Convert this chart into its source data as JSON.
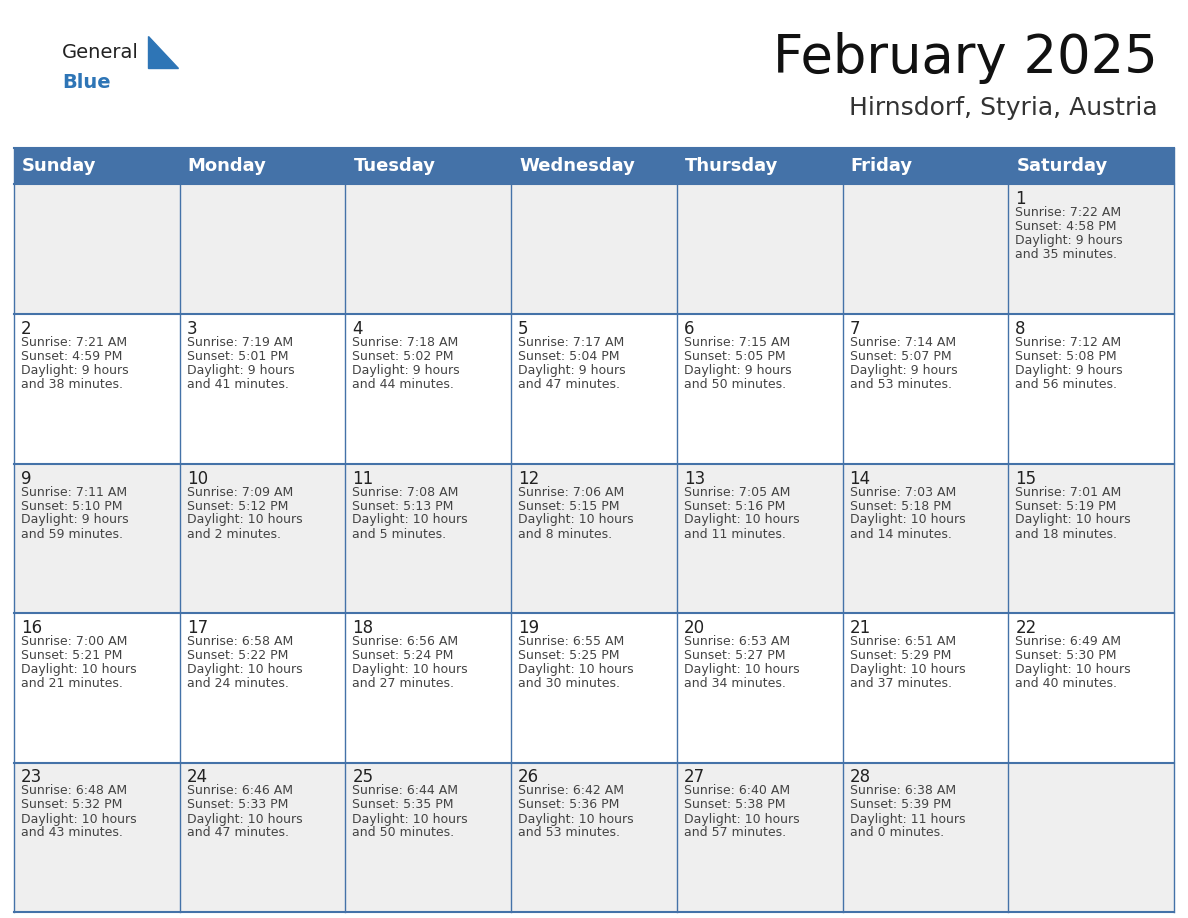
{
  "title": "February 2025",
  "subtitle": "Hirnsdorf, Styria, Austria",
  "header_color": "#4472A8",
  "header_text_color": "#FFFFFF",
  "row_bg_gray": "#EFEFEF",
  "row_bg_white": "#FFFFFF",
  "grid_line_color": "#4472A8",
  "day_headers": [
    "Sunday",
    "Monday",
    "Tuesday",
    "Wednesday",
    "Thursday",
    "Friday",
    "Saturday"
  ],
  "title_fontsize": 38,
  "subtitle_fontsize": 18,
  "header_fontsize": 13,
  "cell_day_fontsize": 12,
  "cell_text_fontsize": 9,
  "days": [
    {
      "day": 1,
      "col": 6,
      "row": 0,
      "sunrise": "7:22 AM",
      "sunset": "4:58 PM",
      "daylight_h": "9 hours",
      "daylight_m": "and 35 minutes."
    },
    {
      "day": 2,
      "col": 0,
      "row": 1,
      "sunrise": "7:21 AM",
      "sunset": "4:59 PM",
      "daylight_h": "9 hours",
      "daylight_m": "and 38 minutes."
    },
    {
      "day": 3,
      "col": 1,
      "row": 1,
      "sunrise": "7:19 AM",
      "sunset": "5:01 PM",
      "daylight_h": "9 hours",
      "daylight_m": "and 41 minutes."
    },
    {
      "day": 4,
      "col": 2,
      "row": 1,
      "sunrise": "7:18 AM",
      "sunset": "5:02 PM",
      "daylight_h": "9 hours",
      "daylight_m": "and 44 minutes."
    },
    {
      "day": 5,
      "col": 3,
      "row": 1,
      "sunrise": "7:17 AM",
      "sunset": "5:04 PM",
      "daylight_h": "9 hours",
      "daylight_m": "and 47 minutes."
    },
    {
      "day": 6,
      "col": 4,
      "row": 1,
      "sunrise": "7:15 AM",
      "sunset": "5:05 PM",
      "daylight_h": "9 hours",
      "daylight_m": "and 50 minutes."
    },
    {
      "day": 7,
      "col": 5,
      "row": 1,
      "sunrise": "7:14 AM",
      "sunset": "5:07 PM",
      "daylight_h": "9 hours",
      "daylight_m": "and 53 minutes."
    },
    {
      "day": 8,
      "col": 6,
      "row": 1,
      "sunrise": "7:12 AM",
      "sunset": "5:08 PM",
      "daylight_h": "9 hours",
      "daylight_m": "and 56 minutes."
    },
    {
      "day": 9,
      "col": 0,
      "row": 2,
      "sunrise": "7:11 AM",
      "sunset": "5:10 PM",
      "daylight_h": "9 hours",
      "daylight_m": "and 59 minutes."
    },
    {
      "day": 10,
      "col": 1,
      "row": 2,
      "sunrise": "7:09 AM",
      "sunset": "5:12 PM",
      "daylight_h": "10 hours",
      "daylight_m": "and 2 minutes."
    },
    {
      "day": 11,
      "col": 2,
      "row": 2,
      "sunrise": "7:08 AM",
      "sunset": "5:13 PM",
      "daylight_h": "10 hours",
      "daylight_m": "and 5 minutes."
    },
    {
      "day": 12,
      "col": 3,
      "row": 2,
      "sunrise": "7:06 AM",
      "sunset": "5:15 PM",
      "daylight_h": "10 hours",
      "daylight_m": "and 8 minutes."
    },
    {
      "day": 13,
      "col": 4,
      "row": 2,
      "sunrise": "7:05 AM",
      "sunset": "5:16 PM",
      "daylight_h": "10 hours",
      "daylight_m": "and 11 minutes."
    },
    {
      "day": 14,
      "col": 5,
      "row": 2,
      "sunrise": "7:03 AM",
      "sunset": "5:18 PM",
      "daylight_h": "10 hours",
      "daylight_m": "and 14 minutes."
    },
    {
      "day": 15,
      "col": 6,
      "row": 2,
      "sunrise": "7:01 AM",
      "sunset": "5:19 PM",
      "daylight_h": "10 hours",
      "daylight_m": "and 18 minutes."
    },
    {
      "day": 16,
      "col": 0,
      "row": 3,
      "sunrise": "7:00 AM",
      "sunset": "5:21 PM",
      "daylight_h": "10 hours",
      "daylight_m": "and 21 minutes."
    },
    {
      "day": 17,
      "col": 1,
      "row": 3,
      "sunrise": "6:58 AM",
      "sunset": "5:22 PM",
      "daylight_h": "10 hours",
      "daylight_m": "and 24 minutes."
    },
    {
      "day": 18,
      "col": 2,
      "row": 3,
      "sunrise": "6:56 AM",
      "sunset": "5:24 PM",
      "daylight_h": "10 hours",
      "daylight_m": "and 27 minutes."
    },
    {
      "day": 19,
      "col": 3,
      "row": 3,
      "sunrise": "6:55 AM",
      "sunset": "5:25 PM",
      "daylight_h": "10 hours",
      "daylight_m": "and 30 minutes."
    },
    {
      "day": 20,
      "col": 4,
      "row": 3,
      "sunrise": "6:53 AM",
      "sunset": "5:27 PM",
      "daylight_h": "10 hours",
      "daylight_m": "and 34 minutes."
    },
    {
      "day": 21,
      "col": 5,
      "row": 3,
      "sunrise": "6:51 AM",
      "sunset": "5:29 PM",
      "daylight_h": "10 hours",
      "daylight_m": "and 37 minutes."
    },
    {
      "day": 22,
      "col": 6,
      "row": 3,
      "sunrise": "6:49 AM",
      "sunset": "5:30 PM",
      "daylight_h": "10 hours",
      "daylight_m": "and 40 minutes."
    },
    {
      "day": 23,
      "col": 0,
      "row": 4,
      "sunrise": "6:48 AM",
      "sunset": "5:32 PM",
      "daylight_h": "10 hours",
      "daylight_m": "and 43 minutes."
    },
    {
      "day": 24,
      "col": 1,
      "row": 4,
      "sunrise": "6:46 AM",
      "sunset": "5:33 PM",
      "daylight_h": "10 hours",
      "daylight_m": "and 47 minutes."
    },
    {
      "day": 25,
      "col": 2,
      "row": 4,
      "sunrise": "6:44 AM",
      "sunset": "5:35 PM",
      "daylight_h": "10 hours",
      "daylight_m": "and 50 minutes."
    },
    {
      "day": 26,
      "col": 3,
      "row": 4,
      "sunrise": "6:42 AM",
      "sunset": "5:36 PM",
      "daylight_h": "10 hours",
      "daylight_m": "and 53 minutes."
    },
    {
      "day": 27,
      "col": 4,
      "row": 4,
      "sunrise": "6:40 AM",
      "sunset": "5:38 PM",
      "daylight_h": "10 hours",
      "daylight_m": "and 57 minutes."
    },
    {
      "day": 28,
      "col": 5,
      "row": 4,
      "sunrise": "6:38 AM",
      "sunset": "5:39 PM",
      "daylight_h": "11 hours",
      "daylight_m": "and 0 minutes."
    }
  ]
}
